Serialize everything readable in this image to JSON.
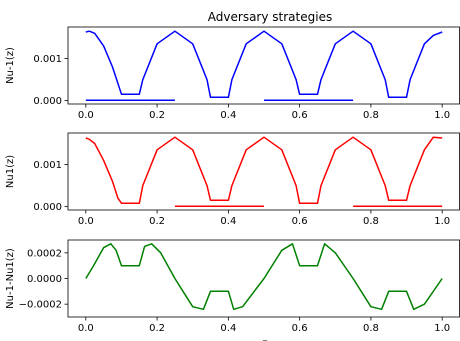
{
  "figure": {
    "title": "Adversary strategies",
    "xlabel": "z"
  },
  "colors": {
    "panel_1": "#0000ff",
    "panel_2": "#ff0000",
    "panel_3": "#008000",
    "axes": "#000000"
  },
  "chart_data": [
    {
      "type": "line",
      "ylabel": "Nu-1(z)",
      "xlim": [
        -0.05,
        1.05
      ],
      "ylim": [
        -8e-05,
        0.00175
      ],
      "xticks": [
        "0.0",
        "0.2",
        "0.4",
        "0.6",
        "0.8",
        "1.0"
      ],
      "yticks": [
        "0.000",
        "0.001"
      ],
      "ytick_values": [
        0,
        0.001
      ],
      "grid": false,
      "series": [
        {
          "x": [
            0,
            0.01,
            0.025,
            0.05,
            0.075,
            0.1,
            0.15,
            0.16,
            0.2,
            0.25,
            0.3,
            0.34,
            0.35,
            0.4,
            0.41,
            0.45,
            0.5,
            0.55,
            0.59,
            0.6,
            0.65,
            0.66,
            0.7,
            0.75,
            0.8,
            0.84,
            0.85,
            0.9,
            0.91,
            0.95,
            0.975,
            1.0
          ],
          "values": [
            0.00163,
            0.00165,
            0.0016,
            0.0013,
            0.0008,
            0.00015,
            0.00015,
            0.0005,
            0.00135,
            0.00165,
            0.00135,
            0.0005,
            8e-05,
            8e-05,
            0.0005,
            0.00135,
            0.00165,
            0.00135,
            0.0005,
            0.00015,
            0.00015,
            0.0005,
            0.00135,
            0.00165,
            0.00135,
            0.0005,
            8e-05,
            8e-05,
            0.0005,
            0.00135,
            0.00155,
            0.00163
          ]
        },
        {
          "segments": [
            [
              0,
              0.25
            ],
            [
              0.5,
              0.75
            ]
          ],
          "value": 1e-05
        }
      ]
    },
    {
      "type": "line",
      "ylabel": "Nu1(z)",
      "xlim": [
        -0.05,
        1.05
      ],
      "ylim": [
        -8e-05,
        0.00175
      ],
      "xticks": [
        "0.0",
        "0.2",
        "0.4",
        "0.6",
        "0.8",
        "1.0"
      ],
      "yticks": [
        "0.000",
        "0.001"
      ],
      "ytick_values": [
        0,
        0.001
      ],
      "grid": false,
      "series": [
        {
          "x": [
            0,
            0.01,
            0.025,
            0.05,
            0.075,
            0.09,
            0.1,
            0.15,
            0.16,
            0.2,
            0.25,
            0.3,
            0.34,
            0.35,
            0.4,
            0.41,
            0.45,
            0.5,
            0.55,
            0.59,
            0.6,
            0.65,
            0.66,
            0.7,
            0.75,
            0.8,
            0.84,
            0.85,
            0.9,
            0.91,
            0.95,
            0.975,
            1.0
          ],
          "values": [
            0.00163,
            0.0016,
            0.0015,
            0.0011,
            0.0006,
            0.0002,
            8e-05,
            8e-05,
            0.0005,
            0.00135,
            0.00165,
            0.00135,
            0.0005,
            0.00015,
            0.00015,
            0.0005,
            0.00135,
            0.00165,
            0.00135,
            0.0005,
            8e-05,
            8e-05,
            0.0005,
            0.00135,
            0.00165,
            0.00135,
            0.0005,
            0.00015,
            0.00015,
            0.0005,
            0.00135,
            0.00165,
            0.00163
          ]
        },
        {
          "segments": [
            [
              0.25,
              0.5
            ],
            [
              0.75,
              1.0
            ]
          ],
          "value": 1e-05
        }
      ]
    },
    {
      "type": "line",
      "ylabel": "Nu-1-Nu1(z)",
      "xlim": [
        -0.05,
        1.05
      ],
      "ylim": [
        -0.0003,
        0.0003
      ],
      "xticks": [
        "0.0",
        "0.2",
        "0.4",
        "0.6",
        "0.8",
        "1.0"
      ],
      "yticks": [
        "−0.0002",
        "0.0000",
        "0.0002"
      ],
      "ytick_values": [
        -0.0002,
        0,
        0.0002
      ],
      "grid": false,
      "series": [
        {
          "x": [
            0,
            0.02,
            0.05,
            0.07,
            0.085,
            0.1,
            0.15,
            0.165,
            0.185,
            0.21,
            0.25,
            0.3,
            0.33,
            0.35,
            0.4,
            0.415,
            0.44,
            0.5,
            0.55,
            0.58,
            0.6,
            0.65,
            0.67,
            0.7,
            0.75,
            0.8,
            0.83,
            0.85,
            0.9,
            0.92,
            0.95,
            1.0
          ],
          "values": [
            0,
            9e-05,
            0.00024,
            0.00027,
            0.00022,
            0.0001,
            0.0001,
            0.00025,
            0.00027,
            0.0002,
            0.0,
            -0.00022,
            -0.00024,
            -0.0001,
            -0.0001,
            -0.00024,
            -0.00022,
            0.0,
            0.00022,
            0.00027,
            0.0001,
            0.0001,
            0.00027,
            0.0002,
            0.0,
            -0.00022,
            -0.00024,
            -0.0001,
            -0.0001,
            -0.00024,
            -0.0002,
            0.0
          ]
        }
      ]
    }
  ]
}
